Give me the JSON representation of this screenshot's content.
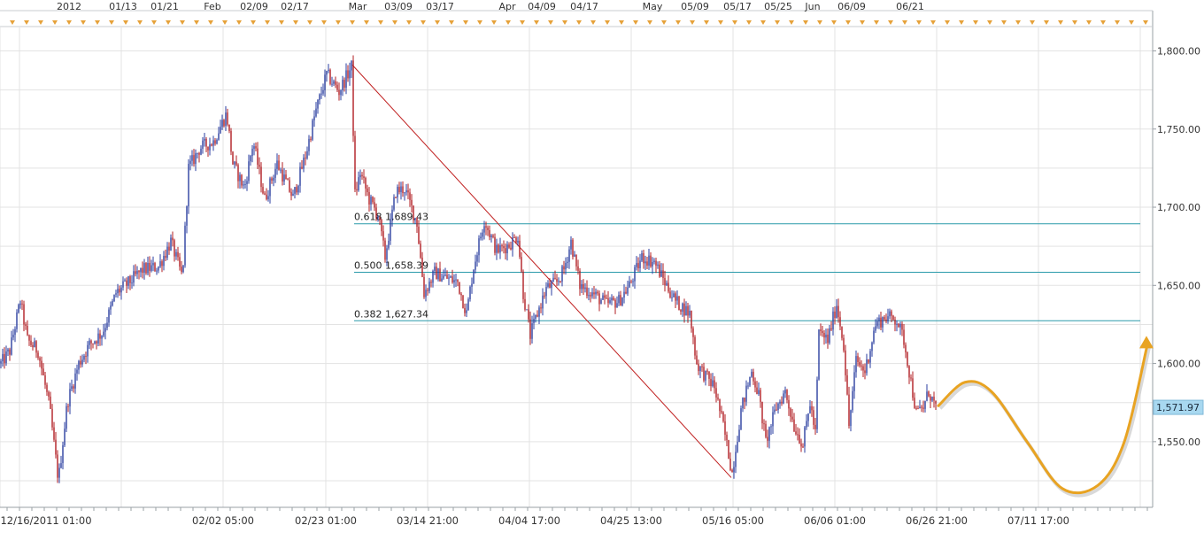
{
  "chart_data": {
    "type": "candlestick",
    "title": "",
    "xlabel": "",
    "ylabel": "",
    "ylim": [
      1508,
      1815
    ],
    "y_ticks": [
      1550,
      1600,
      1650,
      1700,
      1750,
      1800
    ],
    "y_tick_labels": [
      "1,550.00",
      "1,600.00",
      "1,650.00",
      "1,700.00",
      "1,750.00",
      "1,800.00"
    ],
    "bottom_time_labels": [
      "12/16/2011 01:00",
      "02/02 05:00",
      "02/23 01:00",
      "03/14 21:00",
      "04/04 17:00",
      "04/25 13:00",
      "05/16 05:00",
      "06/06 01:00",
      "06/26 21:00",
      "07/11 17:00"
    ],
    "top_date_labels": [
      "2012",
      "01/13",
      "01/21",
      "Feb",
      "02/09",
      "02/17",
      "Mar",
      "03/09",
      "03/17",
      "Apr",
      "04/09",
      "04/17",
      "May",
      "05/09",
      "05/17",
      "05/25",
      "Jun",
      "06/09",
      "06/21"
    ],
    "last_price": 1571.97,
    "last_price_label": "1,571.97",
    "price_path": [
      {
        "t": 0,
        "p": 1600
      },
      {
        "t": 10,
        "p": 1608
      },
      {
        "t": 22,
        "p": 1640
      },
      {
        "t": 30,
        "p": 1615
      },
      {
        "t": 42,
        "p": 1608
      },
      {
        "t": 55,
        "p": 1572
      },
      {
        "t": 65,
        "p": 1525
      },
      {
        "t": 75,
        "p": 1575
      },
      {
        "t": 88,
        "p": 1600
      },
      {
        "t": 100,
        "p": 1612
      },
      {
        "t": 115,
        "p": 1620
      },
      {
        "t": 130,
        "p": 1645
      },
      {
        "t": 145,
        "p": 1652
      },
      {
        "t": 160,
        "p": 1660
      },
      {
        "t": 178,
        "p": 1662
      },
      {
        "t": 192,
        "p": 1678
      },
      {
        "t": 205,
        "p": 1655
      },
      {
        "t": 212,
        "p": 1725
      },
      {
        "t": 225,
        "p": 1738
      },
      {
        "t": 240,
        "p": 1742
      },
      {
        "t": 255,
        "p": 1760
      },
      {
        "t": 262,
        "p": 1728
      },
      {
        "t": 275,
        "p": 1712
      },
      {
        "t": 285,
        "p": 1742
      },
      {
        "t": 298,
        "p": 1705
      },
      {
        "t": 312,
        "p": 1728
      },
      {
        "t": 330,
        "p": 1706
      },
      {
        "t": 345,
        "p": 1735
      },
      {
        "t": 355,
        "p": 1760
      },
      {
        "t": 368,
        "p": 1785
      },
      {
        "t": 382,
        "p": 1774
      },
      {
        "t": 396,
        "p": 1790
      },
      {
        "t": 400,
        "p": 1708
      },
      {
        "t": 406,
        "p": 1722
      },
      {
        "t": 416,
        "p": 1705
      },
      {
        "t": 426,
        "p": 1695
      },
      {
        "t": 434,
        "p": 1668
      },
      {
        "t": 446,
        "p": 1710
      },
      {
        "t": 456,
        "p": 1712
      },
      {
        "t": 470,
        "p": 1690
      },
      {
        "t": 478,
        "p": 1645
      },
      {
        "t": 490,
        "p": 1658
      },
      {
        "t": 502,
        "p": 1655
      },
      {
        "t": 516,
        "p": 1652
      },
      {
        "t": 526,
        "p": 1632
      },
      {
        "t": 534,
        "p": 1662
      },
      {
        "t": 546,
        "p": 1692
      },
      {
        "t": 560,
        "p": 1672
      },
      {
        "t": 574,
        "p": 1676
      },
      {
        "t": 584,
        "p": 1682
      },
      {
        "t": 590,
        "p": 1645
      },
      {
        "t": 598,
        "p": 1618
      },
      {
        "t": 606,
        "p": 1632
      },
      {
        "t": 616,
        "p": 1648
      },
      {
        "t": 628,
        "p": 1652
      },
      {
        "t": 636,
        "p": 1660
      },
      {
        "t": 644,
        "p": 1678
      },
      {
        "t": 654,
        "p": 1650
      },
      {
        "t": 668,
        "p": 1645
      },
      {
        "t": 684,
        "p": 1638
      },
      {
        "t": 698,
        "p": 1640
      },
      {
        "t": 710,
        "p": 1650
      },
      {
        "t": 724,
        "p": 1668
      },
      {
        "t": 738,
        "p": 1665
      },
      {
        "t": 750,
        "p": 1652
      },
      {
        "t": 762,
        "p": 1640
      },
      {
        "t": 778,
        "p": 1632
      },
      {
        "t": 786,
        "p": 1600
      },
      {
        "t": 796,
        "p": 1592
      },
      {
        "t": 806,
        "p": 1585
      },
      {
        "t": 816,
        "p": 1560
      },
      {
        "t": 826,
        "p": 1530
      },
      {
        "t": 836,
        "p": 1570
      },
      {
        "t": 848,
        "p": 1595
      },
      {
        "t": 856,
        "p": 1580
      },
      {
        "t": 864,
        "p": 1550
      },
      {
        "t": 876,
        "p": 1572
      },
      {
        "t": 886,
        "p": 1582
      },
      {
        "t": 896,
        "p": 1560
      },
      {
        "t": 906,
        "p": 1548
      },
      {
        "t": 914,
        "p": 1575
      },
      {
        "t": 920,
        "p": 1555
      },
      {
        "t": 924,
        "p": 1620
      },
      {
        "t": 934,
        "p": 1615
      },
      {
        "t": 944,
        "p": 1638
      },
      {
        "t": 952,
        "p": 1612
      },
      {
        "t": 958,
        "p": 1560
      },
      {
        "t": 966,
        "p": 1602
      },
      {
        "t": 976,
        "p": 1595
      },
      {
        "t": 988,
        "p": 1625
      },
      {
        "t": 1000,
        "p": 1630
      },
      {
        "t": 1012,
        "p": 1628
      },
      {
        "t": 1020,
        "p": 1615
      },
      {
        "t": 1026,
        "p": 1595
      },
      {
        "t": 1034,
        "p": 1568
      },
      {
        "t": 1042,
        "p": 1572
      },
      {
        "t": 1048,
        "p": 1582
      },
      {
        "t": 1056,
        "p": 1572
      }
    ],
    "trend_line": [
      {
        "t": 398,
        "p": 1791
      },
      {
        "t": 826,
        "p": 1527
      }
    ],
    "fib_levels": [
      {
        "label": "0.618 1,689.43",
        "value": 1689.43
      },
      {
        "label": "0.500 1,658.39",
        "value": 1658.39
      },
      {
        "label": "0.382 1,627.34",
        "value": 1627.34
      }
    ],
    "projection_path": [
      {
        "t": 1060,
        "p": 1573
      },
      {
        "t": 1090,
        "p": 1588
      },
      {
        "t": 1120,
        "p": 1582
      },
      {
        "t": 1160,
        "p": 1550
      },
      {
        "t": 1200,
        "p": 1520
      },
      {
        "t": 1240,
        "p": 1522
      },
      {
        "t": 1270,
        "p": 1550
      },
      {
        "t": 1296,
        "p": 1612
      }
    ],
    "colors": {
      "up_candle": "#2a3ea0",
      "down_candle": "#b01c22",
      "trend_line": "#c02020",
      "fib_line": "#2a9aaa",
      "projection": "#e8a322",
      "price_badge_bg": "#a8d8f0",
      "grid": "#e3e3e3",
      "axis_text": "#333333"
    },
    "grid": true,
    "legend": "none"
  }
}
